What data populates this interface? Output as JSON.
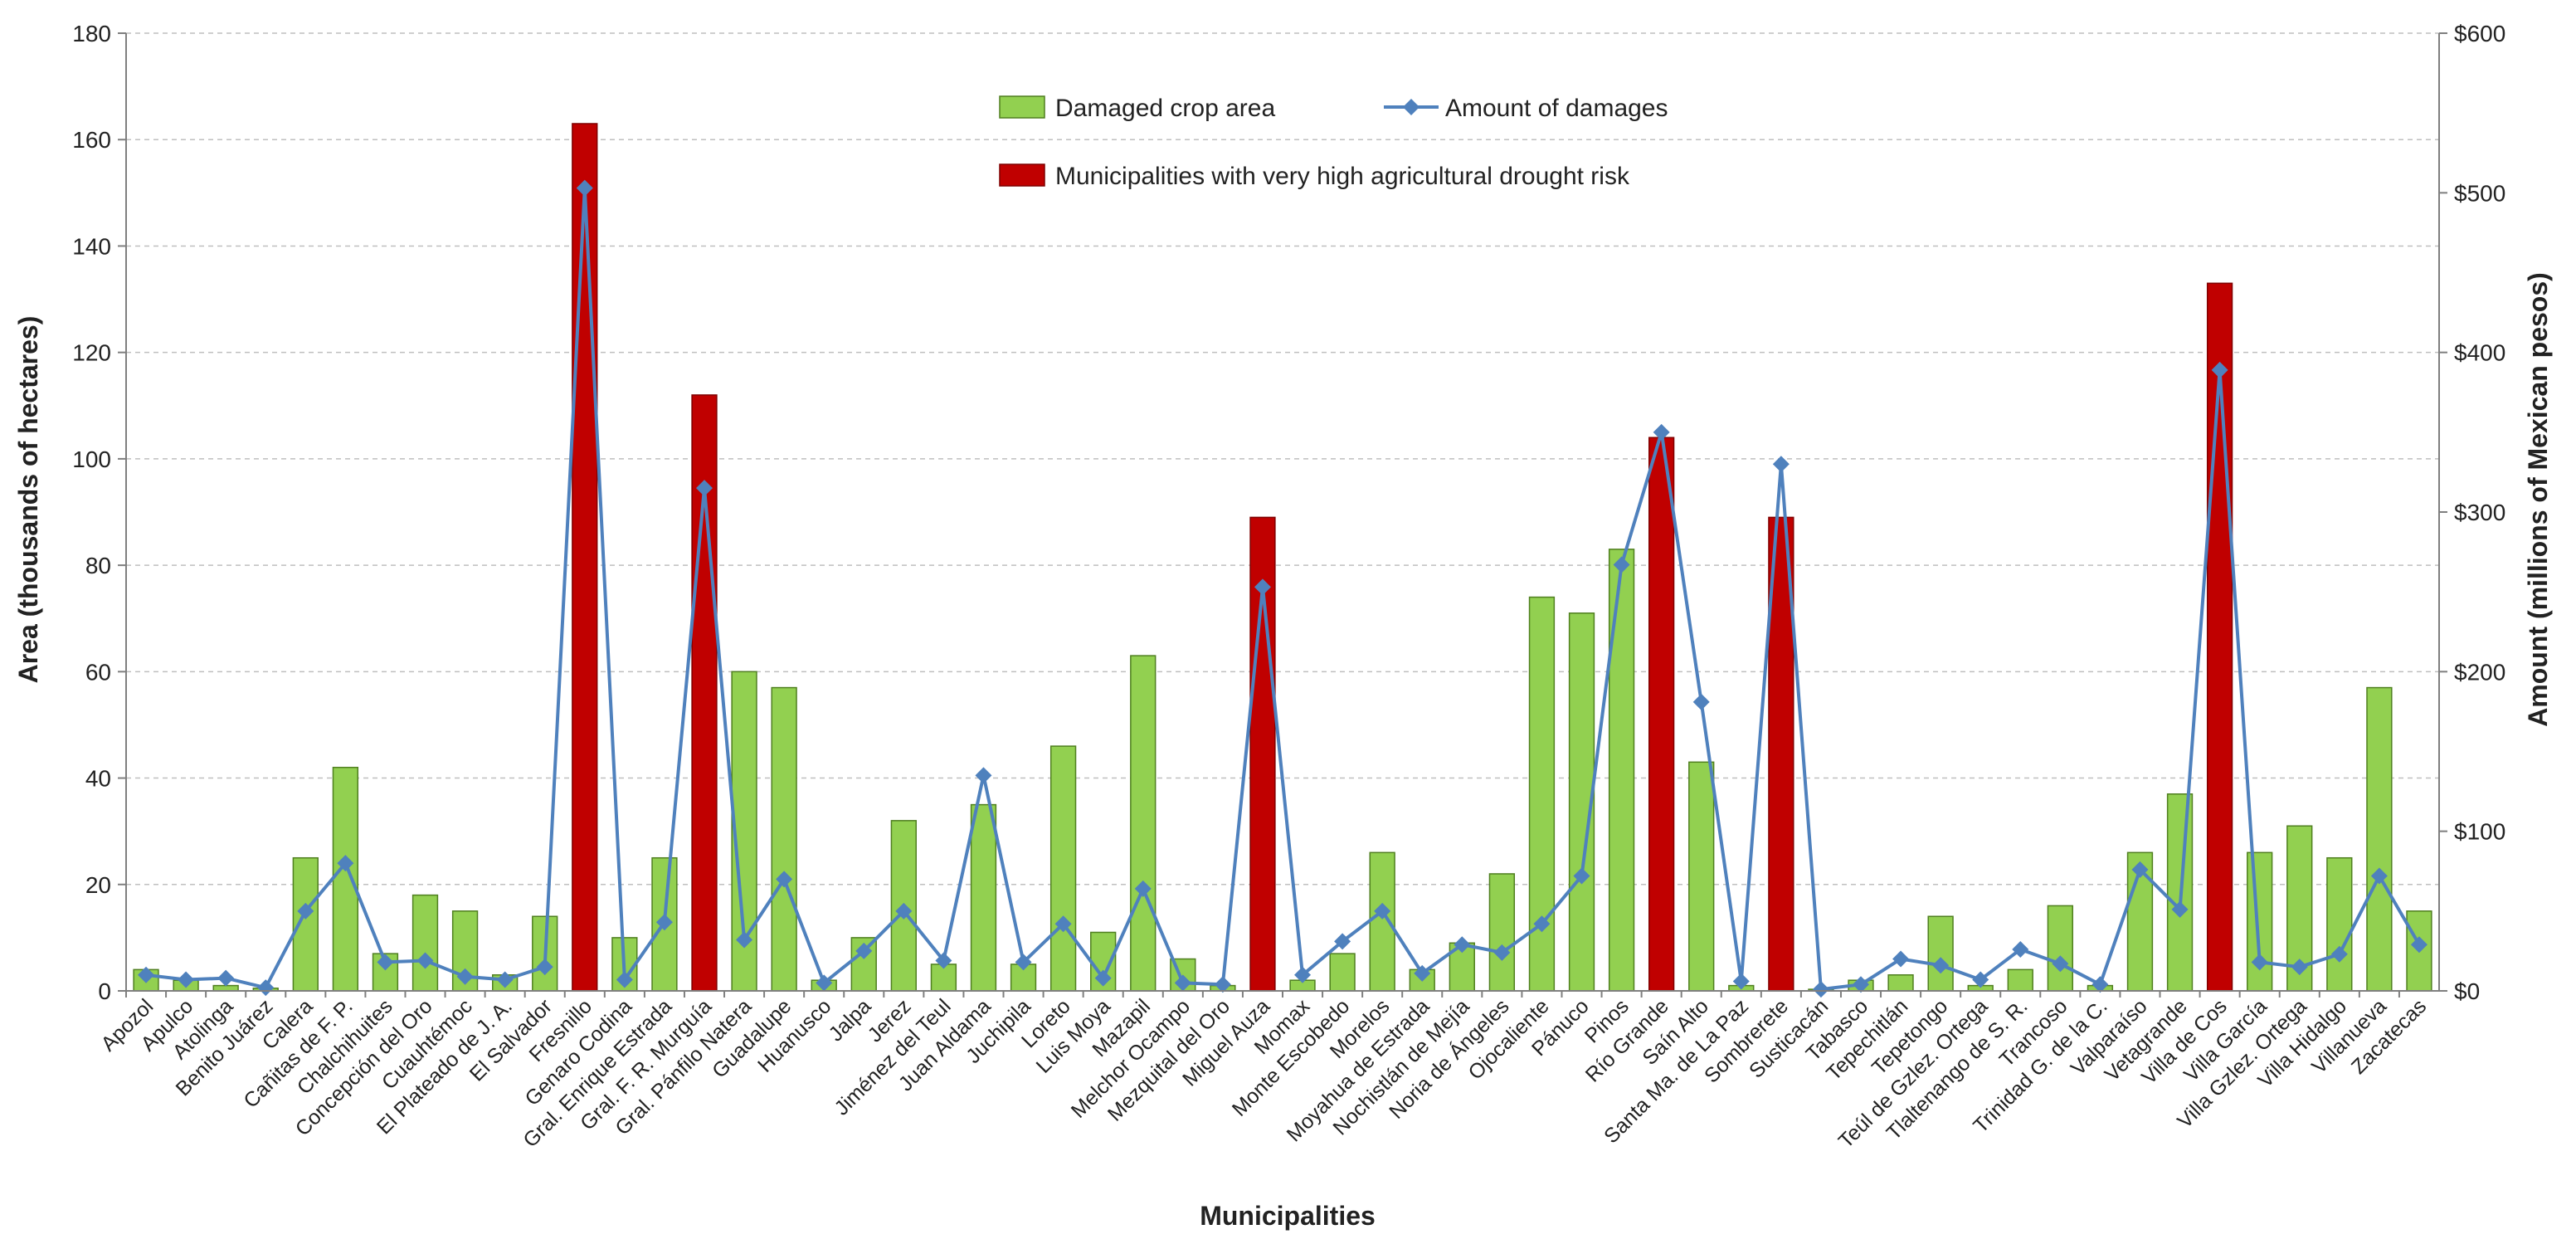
{
  "chart_data": {
    "type": "bar",
    "xlabel": "Municipalities",
    "ylabel": "Area  (thousands of hectares)",
    "y2label": "Amount (millions of Mexican pesos)",
    "ylim": [
      0,
      180
    ],
    "y2lim": [
      0,
      600
    ],
    "yticks": [
      "0",
      "20",
      "40",
      "60",
      "80",
      "100",
      "120",
      "140",
      "160",
      "180"
    ],
    "y2ticks": [
      "$0",
      "$100",
      "$200",
      "$300",
      "$400",
      "$500",
      "$600"
    ],
    "grid": true,
    "legend_position": "top-center",
    "categories": [
      "Apozol",
      "Apulco",
      "Atolinga",
      "Benito Juárez",
      "Calera",
      "Cañitas de F. P.",
      "Chalchihuites",
      "Concepción del Oro",
      "Cuauhtémoc",
      "El Plateado de J. A.",
      "El Salvador",
      "Fresnillo",
      "Genaro Codina",
      "Gral. Enrique Estrada",
      "Gral. F. R. Murguía",
      "Gral. Pánfilo Natera",
      "Guadalupe",
      "Huanusco",
      "Jalpa",
      "Jerez",
      "Jiménez del Teul",
      "Juan Aldama",
      "Juchipila",
      "Loreto",
      "Luis Moya",
      "Mazapil",
      "Melchor Ocampo",
      "Mezquital del Oro",
      "Miguel Auza",
      "Momax",
      "Monte Escobedo",
      "Morelos",
      "Moyahua de Estrada",
      "Nochistlán de Mejía",
      "Noria de Ángeles",
      "Ojocaliente",
      "Pánuco",
      "Pinos",
      "Río Grande",
      "Saín Alto",
      "Santa Ma. de La Paz",
      "Sombrerete",
      "Susticacán",
      "Tabasco",
      "Tepechitlán",
      "Tepetongo",
      "Teúl de Gzlez. Ortega",
      "Tlaltenango de S. R.",
      "Trancoso",
      "Trinidad G. de la C.",
      "Valparaíso",
      "Vetagrande",
      "Villa de Cos",
      "Villa García",
      "Villa Gzlez. Ortega",
      "Villa Hidalgo",
      "Villanueva",
      "Zacatecas"
    ],
    "series": [
      {
        "name": "Damaged crop area",
        "type": "bar",
        "axis": "left",
        "color": "#92d050",
        "values": [
          4,
          2,
          1,
          0.5,
          25,
          42,
          7,
          18,
          15,
          3,
          14,
          163,
          10,
          25,
          112,
          60,
          57,
          2,
          10,
          32,
          5,
          35,
          5,
          46,
          11,
          63,
          6,
          1,
          89,
          2,
          7,
          26,
          4,
          9,
          22,
          74,
          71,
          83,
          104,
          43,
          1,
          89,
          0.3,
          2,
          3,
          14,
          1,
          4,
          16,
          1,
          26,
          37,
          133,
          26,
          31,
          25,
          57,
          15
        ]
      },
      {
        "name": "Amount of damages",
        "type": "line",
        "axis": "right",
        "color": "#4f81bd",
        "values": [
          10,
          7,
          8,
          2,
          50,
          80,
          18,
          19,
          9,
          7,
          15,
          503,
          7,
          43,
          315,
          32,
          70,
          5,
          25,
          50,
          19,
          135,
          18,
          42,
          8,
          64,
          5,
          4,
          253,
          10,
          31,
          50,
          11,
          29,
          24,
          42,
          72,
          267,
          350,
          181,
          6,
          330,
          1,
          4,
          20,
          16,
          7,
          26,
          17,
          4,
          76,
          51,
          389,
          18,
          15,
          23,
          72,
          29
        ]
      }
    ],
    "highlight": {
      "name": "Municipalities with very high agricultural drought risk",
      "color": "#c00000",
      "categories": [
        "Fresnillo",
        "Gral. F. R. Murguía",
        "Miguel Auza",
        "Río Grande",
        "Sombrerete",
        "Villa de Cos"
      ]
    },
    "legend": [
      "Damaged crop area",
      "Amount of damages",
      "Municipalities with very high agricultural drought risk"
    ]
  }
}
